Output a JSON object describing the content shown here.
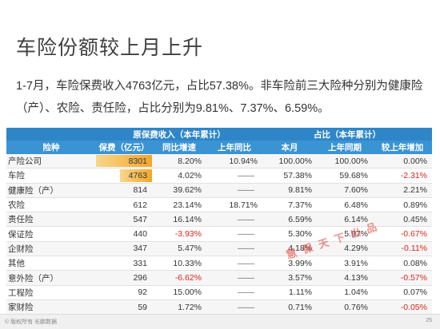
{
  "slide": {
    "title": "车险份额较上月上升",
    "text": "1-7月，车险保费收入4763亿元，占比57.38%。非车险前三大险种分别为健康险（产）、农险、责任险，占比分别为9.81%、7.37%、6.59%。"
  },
  "table": {
    "group_headers": {
      "premium": "原保费收入（本年累计）",
      "share": "占比（本年累计）"
    },
    "columns": {
      "type": "险种",
      "premium": "保费（亿元）",
      "yoy": "同比增速",
      "last_year_yoy": "上年同比",
      "month": "本月",
      "same_period_last_year": "上年同期",
      "increase_vs_last_year": "较上年增加"
    },
    "rows": [
      {
        "name": "产险公司",
        "premium": "8301",
        "premium_fraction": 1.0,
        "yoy": "8.20%",
        "last_yoy": "10.94%",
        "month": "100.00%",
        "last_period": "100.00%",
        "increase": "0.00%",
        "yoy_neg": false,
        "inc_neg": false
      },
      {
        "name": "车险",
        "premium": "4763",
        "premium_fraction": 0.574,
        "yoy": "4.02%",
        "last_yoy": "——",
        "month": "57.38%",
        "last_period": "59.68%",
        "increase": "-2.31%",
        "yoy_neg": false,
        "inc_neg": true
      },
      {
        "name": "健康险（产）",
        "premium": "814",
        "premium_fraction": 0.0,
        "yoy": "39.62%",
        "last_yoy": "——",
        "month": "9.81%",
        "last_period": "7.60%",
        "increase": "2.21%",
        "yoy_neg": false,
        "inc_neg": false
      },
      {
        "name": "农险",
        "premium": "612",
        "premium_fraction": 0.0,
        "yoy": "23.14%",
        "last_yoy": "18.71%",
        "month": "7.37%",
        "last_period": "6.48%",
        "increase": "0.89%",
        "yoy_neg": false,
        "inc_neg": false
      },
      {
        "name": "责任险",
        "premium": "547",
        "premium_fraction": 0.0,
        "yoy": "16.14%",
        "last_yoy": "——",
        "month": "6.59%",
        "last_period": "6.14%",
        "increase": "0.45%",
        "yoy_neg": false,
        "inc_neg": false
      },
      {
        "name": "保证险",
        "premium": "440",
        "premium_fraction": 0.0,
        "yoy": "-3.93%",
        "last_yoy": "——",
        "month": "5.30%",
        "last_period": "5.97%",
        "increase": "-0.67%",
        "yoy_neg": true,
        "inc_neg": true
      },
      {
        "name": "企财险",
        "premium": "347",
        "premium_fraction": 0.0,
        "yoy": "5.47%",
        "last_yoy": "——",
        "month": "4.18%",
        "last_period": "4.29%",
        "increase": "-0.11%",
        "yoy_neg": false,
        "inc_neg": true
      },
      {
        "name": "其他",
        "premium": "331",
        "premium_fraction": 0.0,
        "yoy": "10.33%",
        "last_yoy": "——",
        "month": "3.99%",
        "last_period": "3.91%",
        "increase": "0.08%",
        "yoy_neg": false,
        "inc_neg": false
      },
      {
        "name": "意外险（产）",
        "premium": "296",
        "premium_fraction": 0.0,
        "yoy": "-6.62%",
        "last_yoy": "——",
        "month": "3.57%",
        "last_period": "4.13%",
        "increase": "-0.57%",
        "yoy_neg": true,
        "inc_neg": true
      },
      {
        "name": "工程险",
        "premium": "92",
        "premium_fraction": 0.0,
        "yoy": "15.00%",
        "last_yoy": "——",
        "month": "1.11%",
        "last_period": "1.04%",
        "increase": "0.07%",
        "yoy_neg": false,
        "inc_neg": false
      },
      {
        "name": "家财险",
        "premium": "59",
        "premium_fraction": 0.0,
        "yoy": "1.72%",
        "last_yoy": "——",
        "month": "0.71%",
        "last_period": "0.76%",
        "increase": "-0.05%",
        "yoy_neg": false,
        "inc_neg": true
      }
    ]
  },
  "footer": {
    "copyright": "© 版权所有 长鹏数据",
    "page_number": "25"
  },
  "watermark": "慧保天下出品",
  "colors": {
    "header_blue": "#2e86c8",
    "bar_orange": "#f3a62a",
    "negative_red": "#d9261c"
  }
}
